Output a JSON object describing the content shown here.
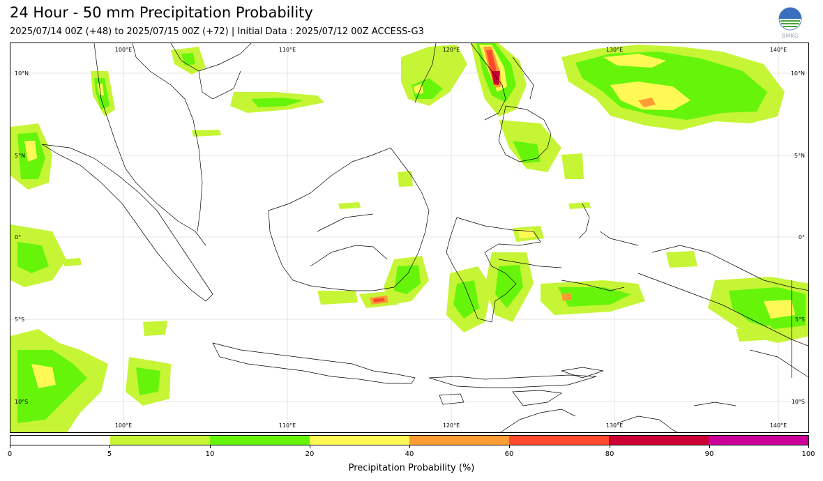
{
  "header": {
    "title": "24 Hour - 50 mm Precipitation Probability",
    "subtitle": "2025/07/14 00Z (+48) to 2025/07/15 00Z (+72) | Initial Data : 2025/07/12 00Z ACCESS-G3",
    "logo_text": "BMKG"
  },
  "map": {
    "lon_labels_top": [
      "100°E",
      "110°E",
      "120°E",
      "130°E",
      "140°E"
    ],
    "lon_labels_bottom": [
      "100°E",
      "110°E",
      "120°E",
      "130°E",
      "140°E"
    ],
    "lat_labels_left": [
      "10°N",
      "5°N",
      "0°",
      "5°S",
      "10°S"
    ],
    "lat_labels_right": [
      "10°N",
      "5°N",
      "0°",
      "5°S",
      "10°S"
    ]
  },
  "colorbar": {
    "label": "Precipitation Probability (%)",
    "ticks": [
      "0",
      "5",
      "10",
      "20",
      "40",
      "60",
      "80",
      "90",
      "100"
    ],
    "colors": [
      "#ffffff",
      "#c6f536",
      "#66f50a",
      "#fff956",
      "#ff9c33",
      "#ff4a2f",
      "#cc0033",
      "#cc0099"
    ]
  },
  "colors": {
    "level_5": "#c6f536",
    "level_10": "#66f50a",
    "level_20": "#fff956",
    "level_40": "#ff9c33",
    "level_60": "#ff4a2f",
    "level_80": "#cc0033"
  }
}
